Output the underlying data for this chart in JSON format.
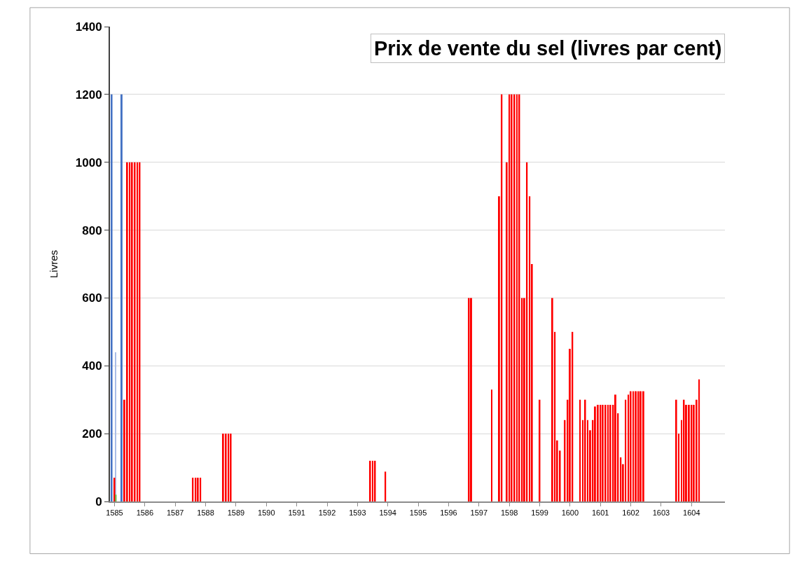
{
  "chart_data": {
    "type": "bar",
    "title": "Prix de vente du sel (livres par cent)",
    "ylabel": "Livres",
    "series": [
      {
        "color": "#4472c4",
        "x": [
          1585,
          1585.33
        ],
        "values": [
          1200,
          1200
        ]
      },
      {
        "color": "#a9bde6",
        "x": [
          1585.08
        ],
        "values": [
          440
        ]
      },
      {
        "color": "#ff0000",
        "x": [
          1585,
          1585.33,
          1585.42,
          1585.5,
          1585.58,
          1585.67,
          1585.75,
          1585.83,
          1587.58,
          1587.67,
          1587.75,
          1587.83,
          1588.58,
          1588.67,
          1588.75,
          1588.83,
          1593.42,
          1593.5,
          1593.58,
          1593.92,
          1596.67,
          1596.75,
          1597.42,
          1597.67,
          1597.75,
          1597.92,
          1598,
          1598.08,
          1598.17,
          1598.25,
          1598.33,
          1598.42,
          1598.5,
          1598.58,
          1598.67,
          1598.75,
          1599,
          1599.42,
          1599.5,
          1599.58,
          1599.67,
          1599.83,
          1599.92,
          1600,
          1600.08,
          1600.33,
          1600.42,
          1600.5,
          1600.58,
          1600.67,
          1600.75,
          1600.83,
          1600.92,
          1601,
          1601.08,
          1601.17,
          1601.25,
          1601.33,
          1601.42,
          1601.5,
          1601.58,
          1601.67,
          1601.75,
          1601.83,
          1601.92,
          1602,
          1602.08,
          1602.17,
          1602.25,
          1602.33,
          1602.42,
          1603.5,
          1603.58,
          1603.67,
          1603.75,
          1603.83,
          1603.92,
          1604,
          1604.08,
          1604.17,
          1604.25
        ],
        "values": [
          70,
          300,
          1000,
          1000,
          1000,
          1000,
          1000,
          1000,
          70,
          70,
          70,
          70,
          200,
          200,
          200,
          200,
          120,
          120,
          120,
          88,
          600,
          600,
          330,
          900,
          1200,
          1000,
          1200,
          1200,
          1200,
          1200,
          1200,
          600,
          600,
          1000,
          900,
          700,
          300,
          600,
          500,
          180,
          150,
          240,
          300,
          450,
          500,
          300,
          240,
          300,
          240,
          210,
          240,
          280,
          285,
          285,
          285,
          285,
          285,
          285,
          285,
          315,
          260,
          130,
          110,
          300,
          315,
          325,
          325,
          325,
          325,
          325,
          325,
          300,
          200,
          240,
          300,
          285,
          285,
          285,
          285,
          300,
          360
        ]
      },
      {
        "color": "#70ad47",
        "x": [
          1585
        ],
        "values": [
          20
        ]
      }
    ],
    "xlim": [
      1584.85,
      1605.1
    ],
    "xticks": [
      1585,
      1586,
      1587,
      1588,
      1589,
      1590,
      1591,
      1592,
      1593,
      1594,
      1595,
      1596,
      1597,
      1598,
      1599,
      1600,
      1601,
      1602,
      1603,
      1604
    ],
    "ylim": [
      0,
      1400
    ],
    "yticks": [
      0,
      200,
      400,
      600,
      800,
      1000,
      1200,
      1400
    ],
    "grid": "y"
  }
}
